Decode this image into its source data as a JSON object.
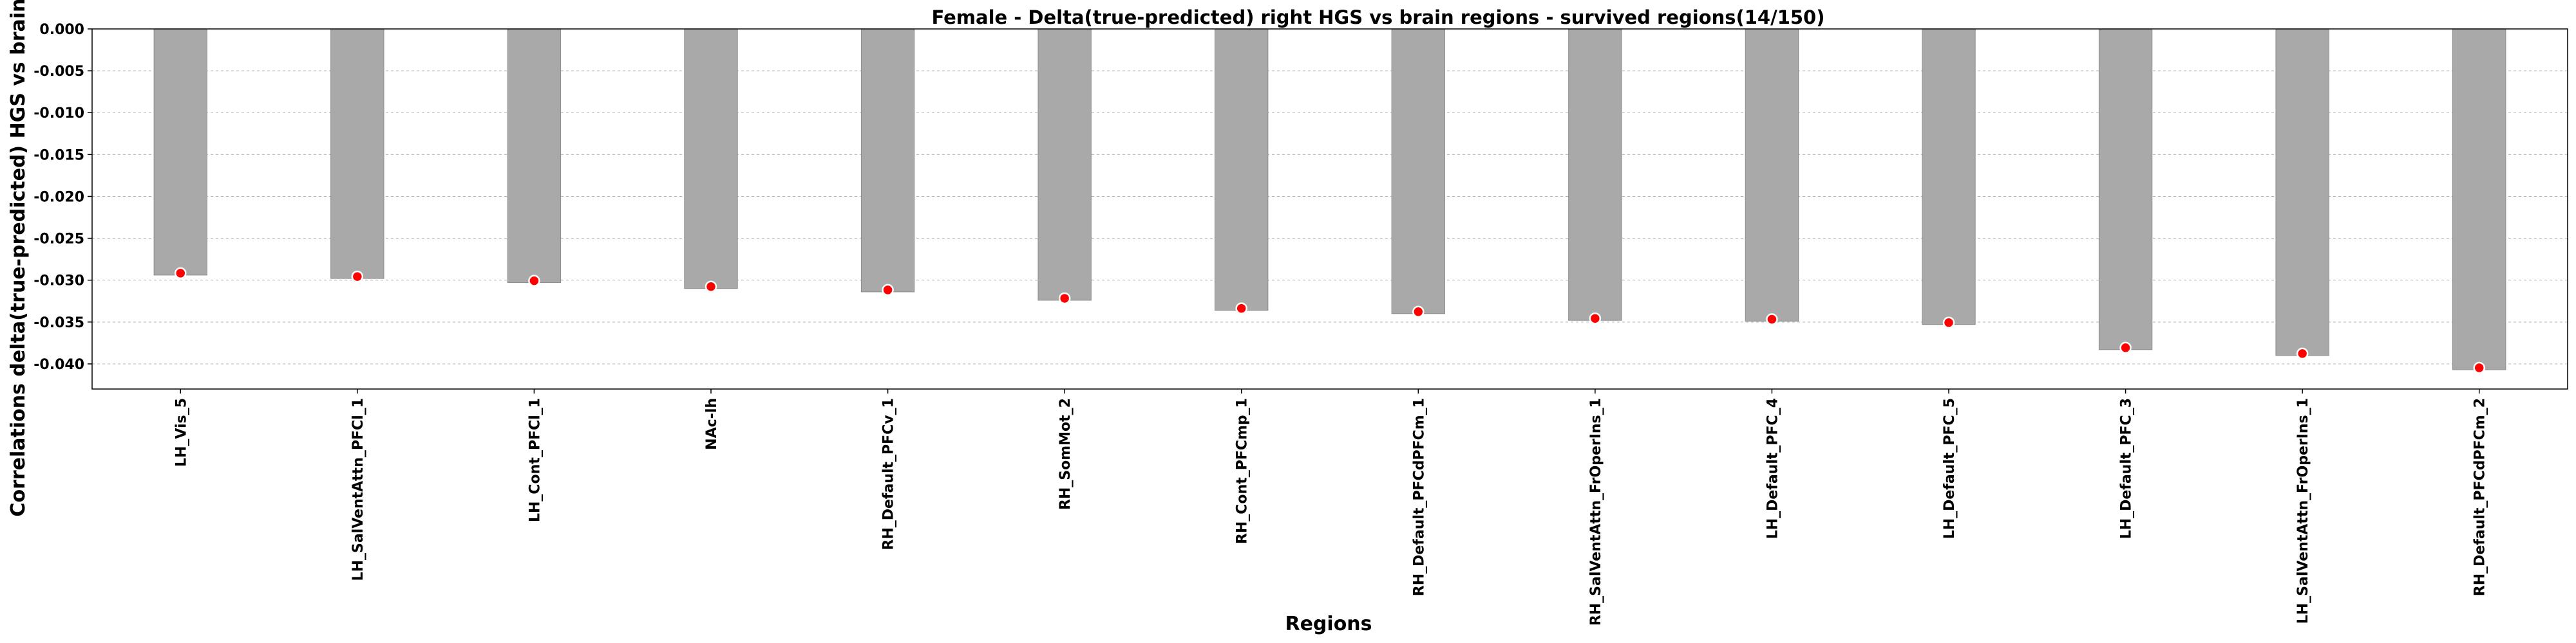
{
  "chart_data": {
    "type": "bar",
    "title": "Female - Delta(true-predicted) right HGS vs brain regions - survived regions(14/150)",
    "xlabel": "Regions",
    "ylabel": "Correlations delta(true-predicted) HGS vs brain regions",
    "ylim": [
      -0.043,
      0.0
    ],
    "yticks": [
      "0.000",
      "-0.005",
      "-0.010",
      "-0.015",
      "-0.020",
      "-0.025",
      "-0.030",
      "-0.035",
      "-0.040"
    ],
    "grid": "horizontal-dashed",
    "bar_color": "#a9a9a9",
    "marker_color": "#ff0000",
    "categories": [
      "LH_Vis_5",
      "LH_SalVentAttn_PFCl_1",
      "LH_Cont_PFCl_1",
      "NAc-lh",
      "RH_Default_PFCv_1",
      "RH_SomMot_2",
      "RH_Cont_PFCmp_1",
      "RH_Default_PFCdPFCm_1",
      "RH_SalVentAttn_FrOperIns_1",
      "LH_Default_PFC_4",
      "LH_Default_PFC_5",
      "LH_Default_PFC_3",
      "LH_SalVentAttn_FrOperIns_1",
      "RH_Default_PFCdPFCm_2"
    ],
    "values": [
      -0.0294,
      -0.0298,
      -0.0303,
      -0.031,
      -0.0314,
      -0.0324,
      -0.0336,
      -0.034,
      -0.0348,
      -0.0349,
      -0.0353,
      -0.0383,
      -0.039,
      -0.0407
    ]
  }
}
